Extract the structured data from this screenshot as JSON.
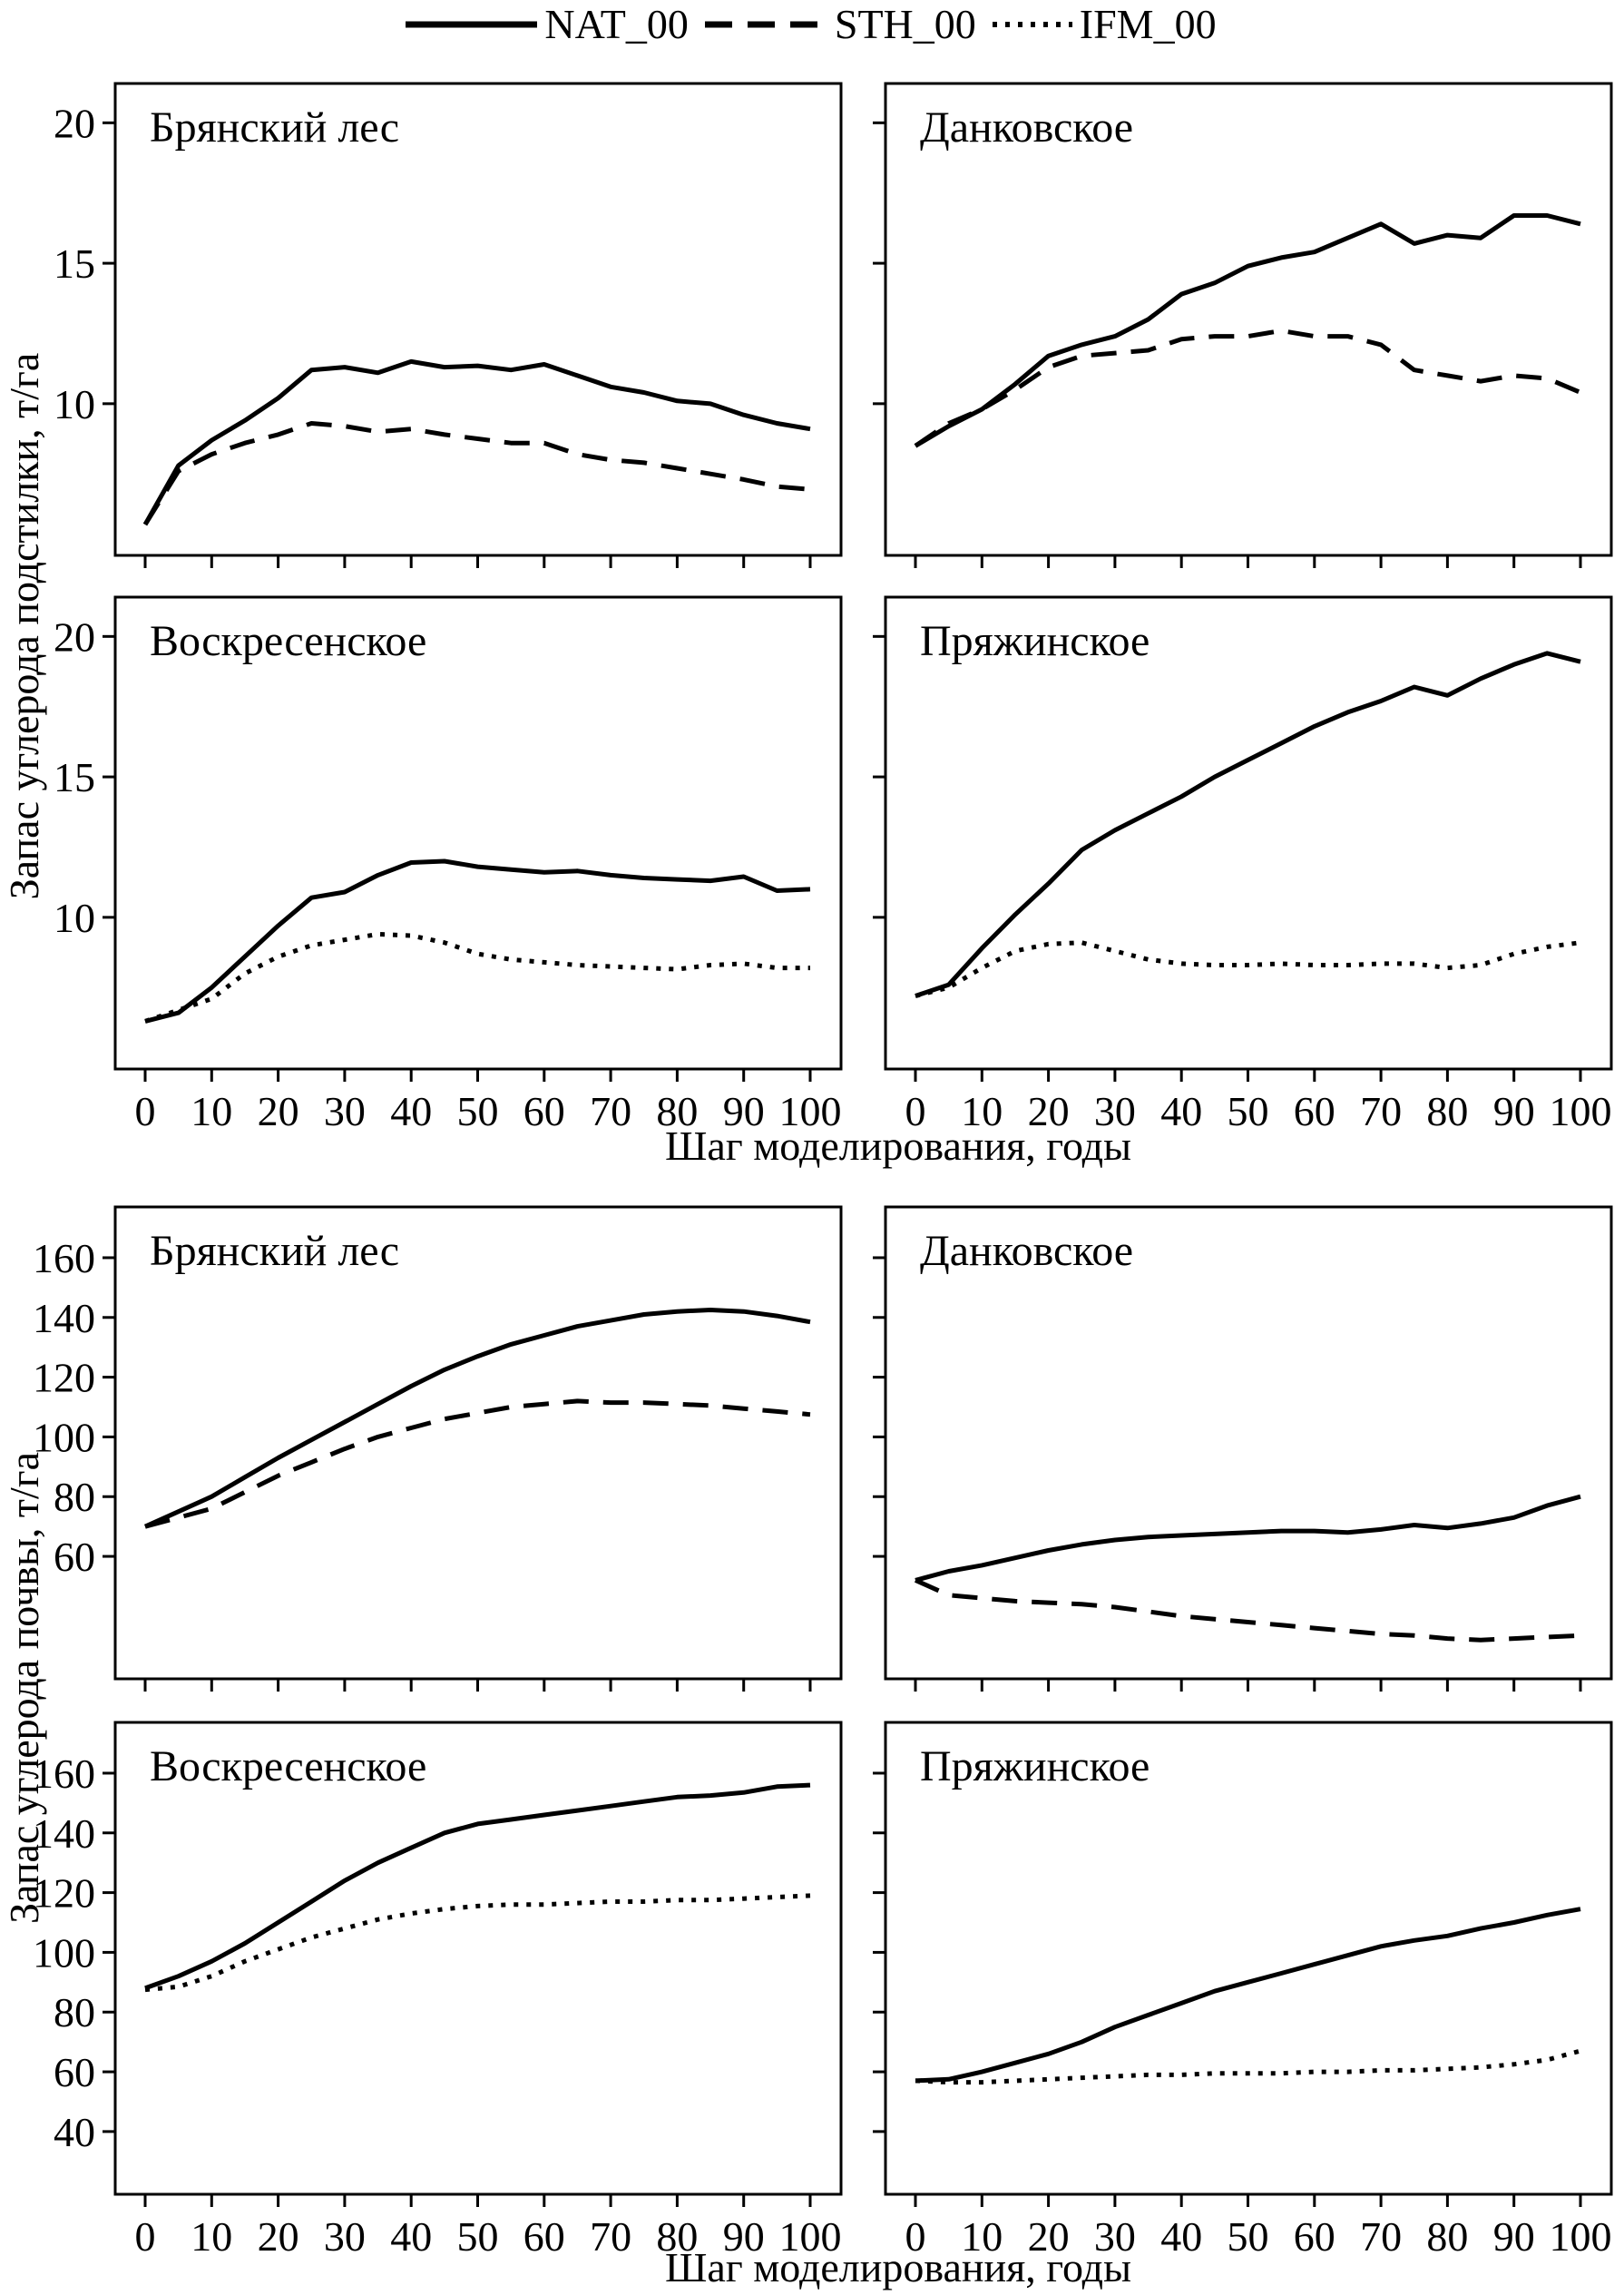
{
  "figure": {
    "background": "#ffffff",
    "line_color": "#000000",
    "legend": [
      {
        "label": "NAT_00",
        "style": "solid"
      },
      {
        "label": "STH_00",
        "style": "dashed"
      },
      {
        "label": "IFM_00",
        "style": "dotted"
      }
    ]
  },
  "chart_data": [
    {
      "type": "line",
      "group": "litter",
      "ylabel": "Запас углерода подстилки, т/га",
      "xlabel": "Шаг моделирования, годы",
      "grid": false,
      "legend_position": "top-center",
      "x": [
        0,
        5,
        10,
        15,
        20,
        25,
        30,
        35,
        40,
        45,
        50,
        55,
        60,
        65,
        70,
        75,
        80,
        85,
        90,
        95,
        100
      ],
      "xticks": [
        0,
        10,
        20,
        30,
        40,
        50,
        60,
        70,
        80,
        90,
        100
      ],
      "ylim": [
        4.6,
        21.4
      ],
      "yticks_per_row": [
        [
          10,
          15,
          20
        ],
        [
          10,
          15,
          20
        ]
      ],
      "panels": [
        {
          "title": "Брянский лес",
          "series": [
            {
              "name": "NAT_00",
              "style": "solid",
              "values": [
                5.7,
                7.8,
                8.7,
                9.4,
                10.2,
                11.2,
                11.3,
                11.1,
                11.5,
                11.3,
                11.35,
                11.2,
                11.4,
                11.0,
                10.6,
                10.4,
                10.1,
                10.0,
                9.6,
                9.3,
                9.1
              ]
            },
            {
              "name": "STH_00",
              "style": "dashed",
              "values": [
                5.7,
                7.6,
                8.2,
                8.6,
                8.9,
                9.3,
                9.2,
                9.0,
                9.1,
                8.9,
                8.75,
                8.6,
                8.6,
                8.2,
                8.0,
                7.9,
                7.7,
                7.5,
                7.3,
                7.05,
                6.95
              ]
            }
          ]
        },
        {
          "title": "Данковское",
          "series": [
            {
              "name": "NAT_00",
              "style": "solid",
              "values": [
                8.5,
                9.2,
                9.8,
                10.7,
                11.7,
                12.1,
                12.4,
                13.0,
                13.9,
                14.3,
                14.9,
                15.2,
                15.4,
                15.9,
                16.4,
                15.7,
                16.0,
                15.9,
                16.7,
                16.7,
                16.4
              ]
            },
            {
              "name": "STH_00",
              "style": "dashed",
              "values": [
                8.5,
                9.3,
                9.8,
                10.5,
                11.3,
                11.7,
                11.8,
                11.9,
                12.3,
                12.4,
                12.4,
                12.6,
                12.4,
                12.4,
                12.1,
                11.2,
                11.0,
                10.8,
                11.0,
                10.9,
                10.4
              ]
            }
          ]
        },
        {
          "title": "Воскресенское",
          "series": [
            {
              "name": "NAT_00",
              "style": "solid",
              "values": [
                6.3,
                6.6,
                7.5,
                8.6,
                9.7,
                10.7,
                10.9,
                11.5,
                11.95,
                12.0,
                11.8,
                11.7,
                11.6,
                11.65,
                11.5,
                11.4,
                11.35,
                11.3,
                11.45,
                10.95,
                11.0
              ]
            },
            {
              "name": "IFM_00",
              "style": "dotted",
              "values": [
                6.3,
                6.7,
                7.1,
                8.0,
                8.6,
                9.0,
                9.2,
                9.4,
                9.35,
                9.1,
                8.7,
                8.5,
                8.4,
                8.3,
                8.25,
                8.2,
                8.15,
                8.3,
                8.35,
                8.2,
                8.2
              ]
            }
          ]
        },
        {
          "title": "Пряжинское",
          "series": [
            {
              "name": "NAT_00",
              "style": "solid",
              "values": [
                7.2,
                7.6,
                8.9,
                10.1,
                11.2,
                12.4,
                13.1,
                13.7,
                14.3,
                15.0,
                15.6,
                16.2,
                16.8,
                17.3,
                17.7,
                18.2,
                17.9,
                18.5,
                19.0,
                19.4,
                19.1
              ]
            },
            {
              "name": "IFM_00",
              "style": "dotted",
              "values": [
                7.2,
                7.5,
                8.2,
                8.8,
                9.05,
                9.1,
                8.8,
                8.5,
                8.35,
                8.3,
                8.3,
                8.35,
                8.3,
                8.3,
                8.35,
                8.35,
                8.2,
                8.3,
                8.7,
                8.95,
                9.1
              ]
            }
          ]
        }
      ]
    },
    {
      "type": "line",
      "group": "soil",
      "ylabel": "Запас углерода почвы, т/га",
      "xlabel": "Шаг моделирования, годы",
      "grid": false,
      "x": [
        0,
        5,
        10,
        15,
        20,
        25,
        30,
        35,
        40,
        45,
        50,
        55,
        60,
        65,
        70,
        75,
        80,
        85,
        90,
        95,
        100
      ],
      "xticks": [
        0,
        10,
        20,
        30,
        40,
        50,
        60,
        70,
        80,
        90,
        100
      ],
      "ylim": [
        19,
        177
      ],
      "yticks_per_row": [
        [
          60,
          80,
          100,
          120,
          140,
          160
        ],
        [
          40,
          60,
          80,
          100,
          120,
          140,
          160
        ]
      ],
      "panels": [
        {
          "title": "Брянский лес",
          "series": [
            {
              "name": "NAT_00",
              "style": "solid",
              "values": [
                70,
                75,
                80,
                86.5,
                93,
                99,
                105,
                111,
                117,
                122.5,
                127,
                131,
                134,
                137,
                139,
                141,
                142,
                142.5,
                142,
                140.5,
                138.5
              ]
            },
            {
              "name": "STH_00",
              "style": "dashed",
              "values": [
                70,
                73,
                76,
                81.5,
                87,
                91.5,
                96,
                100,
                103,
                106,
                108,
                110,
                111,
                112,
                111.5,
                111.5,
                111,
                110.5,
                109.5,
                108.5,
                107.5
              ]
            }
          ]
        },
        {
          "title": "Данковское",
          "series": [
            {
              "name": "NAT_00",
              "style": "solid",
              "values": [
                52,
                55,
                57,
                59.5,
                62,
                64,
                65.5,
                66.5,
                67,
                67.5,
                68,
                68.5,
                68.5,
                68,
                69,
                70.5,
                69.5,
                71,
                73,
                77,
                80
              ]
            },
            {
              "name": "STH_00",
              "style": "dashed",
              "values": [
                52,
                47,
                46,
                45,
                44.5,
                44,
                43,
                41.5,
                40,
                39,
                38,
                37,
                36,
                35,
                34,
                33.5,
                32.5,
                32,
                32.5,
                33,
                33.5
              ]
            }
          ]
        },
        {
          "title": "Воскресенское",
          "series": [
            {
              "name": "NAT_00",
              "style": "solid",
              "values": [
                88,
                92,
                97,
                103,
                110,
                117,
                124,
                130,
                135,
                140,
                143,
                144.5,
                146,
                147.5,
                149,
                150.5,
                152,
                152.5,
                153.5,
                155.5,
                156
              ]
            },
            {
              "name": "IFM_00",
              "style": "dotted",
              "values": [
                87.5,
                88.5,
                92,
                97,
                101,
                105,
                108,
                111,
                113,
                114.5,
                115.5,
                116,
                116,
                116.5,
                117,
                117,
                117.5,
                117.5,
                118,
                118.5,
                119
              ]
            }
          ]
        },
        {
          "title": "Пряжинское",
          "series": [
            {
              "name": "NAT_00",
              "style": "solid",
              "values": [
                57,
                57.5,
                60,
                63,
                66,
                70,
                75,
                79,
                83,
                87,
                90,
                93,
                96,
                99,
                102,
                104,
                105.5,
                108,
                110,
                112.5,
                114.5
              ]
            },
            {
              "name": "IFM_00",
              "style": "dotted",
              "values": [
                57,
                56.5,
                56.5,
                57,
                57.5,
                58,
                58.5,
                59,
                59,
                59.5,
                59.5,
                59.5,
                60,
                60,
                60.5,
                60.5,
                61,
                61.5,
                62.5,
                64,
                67
              ]
            }
          ]
        }
      ]
    }
  ]
}
